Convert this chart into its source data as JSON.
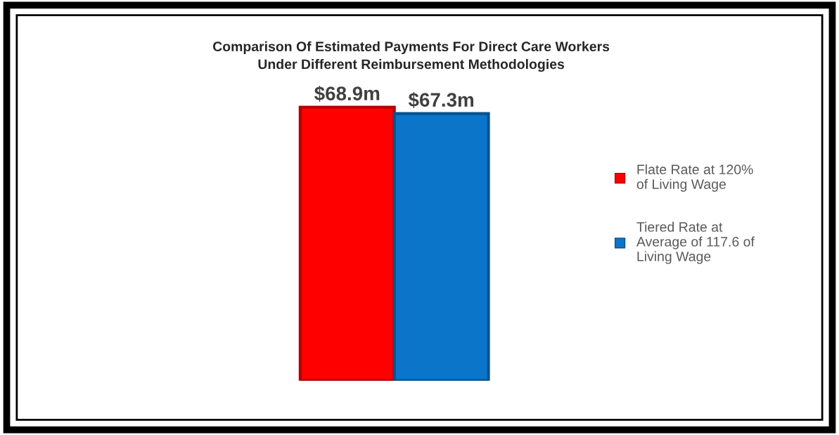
{
  "chart_data": {
    "type": "bar",
    "title": "Comparison Of Estimated Payments For Direct Care Workers\nUnder Different Reimbursement Methodologies",
    "categories": [
      null
    ],
    "series": [
      {
        "name": "Flate Rate at 120%\nof Living Wage",
        "color": "#ff0000",
        "values": [
          68.9
        ],
        "value_labels": [
          "$68.9m"
        ]
      },
      {
        "name": "Tiered Rate at\nAverage of 117.6 of\nLiving Wage",
        "color": "#0a75c9",
        "values": [
          67.3
        ],
        "value_labels": [
          "$67.3m"
        ]
      }
    ],
    "legend": "right",
    "grid": false
  }
}
